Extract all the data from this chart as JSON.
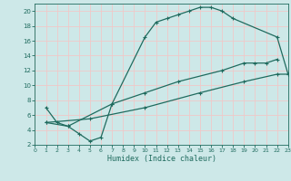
{
  "xlabel": "Humidex (Indice chaleur)",
  "xlim": [
    0,
    23
  ],
  "ylim": [
    2,
    21
  ],
  "yticks": [
    2,
    4,
    6,
    8,
    10,
    12,
    14,
    16,
    18,
    20
  ],
  "xticks": [
    0,
    1,
    2,
    3,
    4,
    5,
    6,
    7,
    8,
    9,
    10,
    11,
    12,
    13,
    14,
    15,
    16,
    17,
    18,
    19,
    20,
    21,
    22,
    23
  ],
  "bg_color": "#cde8e8",
  "line_color": "#1f6b5e",
  "grid_color": "#f0c8c8",
  "line1_x": [
    1,
    2,
    3,
    4,
    5,
    6,
    7,
    10,
    11,
    12,
    13,
    14,
    15,
    16,
    17,
    18,
    22,
    23
  ],
  "line1_y": [
    7,
    5,
    4.5,
    3.5,
    2.5,
    3,
    7.5,
    16.5,
    18.5,
    19,
    19.5,
    20,
    20.5,
    20.5,
    20,
    19,
    16.5,
    11.5
  ],
  "line2_x": [
    1,
    3,
    7,
    10,
    13,
    17,
    19,
    20,
    21,
    22
  ],
  "line2_y": [
    5,
    4.5,
    7.5,
    9,
    10.5,
    12,
    13,
    13,
    13,
    13.5
  ],
  "line3_x": [
    1,
    5,
    10,
    15,
    19,
    22,
    23
  ],
  "line3_y": [
    5,
    5.5,
    7,
    9,
    10.5,
    11.5,
    11.5
  ]
}
